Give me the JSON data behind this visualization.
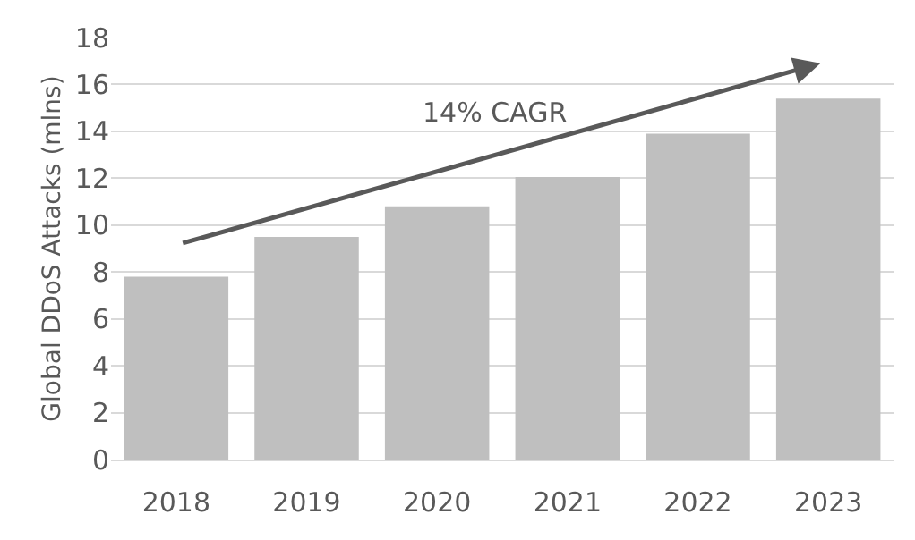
{
  "chart_data": {
    "type": "bar",
    "ylabel": "Global DDoS Attacks (mlns)",
    "categories": [
      "2018",
      "2019",
      "2020",
      "2021",
      "2022",
      "2023"
    ],
    "values": [
      7.8,
      9.5,
      10.8,
      12.05,
      13.9,
      15.4
    ],
    "color": "#bfbfbf",
    "ylim": [
      0,
      18
    ],
    "yticks": [
      0,
      2,
      4,
      6,
      8,
      10,
      12,
      14,
      16,
      18
    ],
    "grid": "y",
    "annotations": [
      "14% CAGR"
    ]
  }
}
